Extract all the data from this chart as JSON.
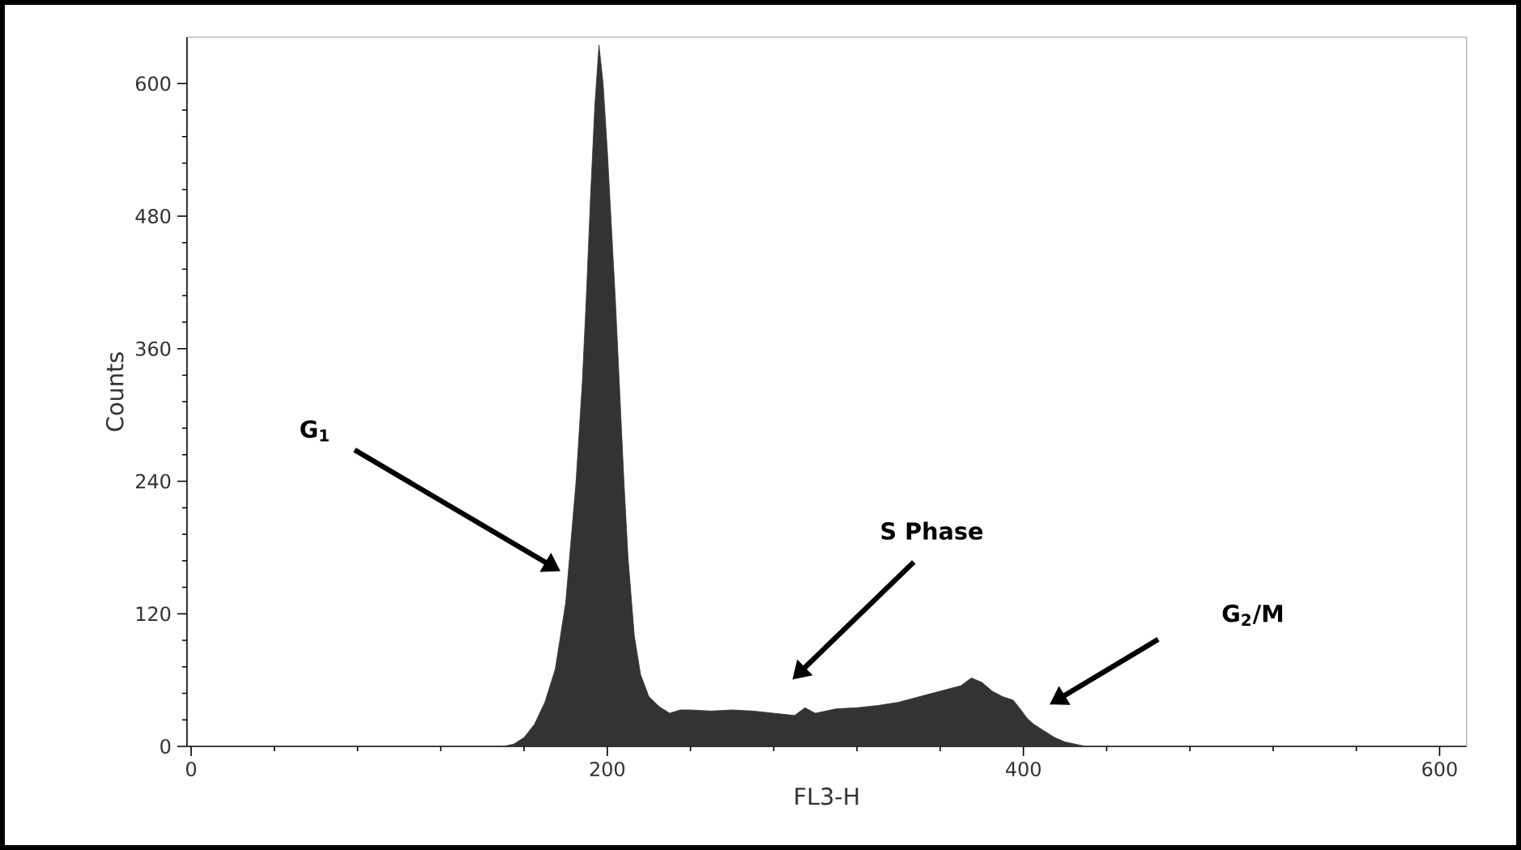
{
  "chart_data": {
    "type": "area",
    "xlabel": "FL3-H",
    "ylabel": "Counts",
    "color": "#333333",
    "x": [
      150,
      155,
      160,
      165,
      170,
      175,
      180,
      185,
      188,
      190,
      192,
      194,
      196,
      198,
      200,
      202,
      204,
      206,
      208,
      210,
      213,
      216,
      220,
      225,
      230,
      235,
      240,
      250,
      260,
      270,
      280,
      290,
      295,
      300,
      310,
      320,
      330,
      340,
      350,
      360,
      370,
      375,
      380,
      385,
      390,
      395,
      398,
      402,
      405,
      410,
      415,
      420,
      425,
      430
    ],
    "values": [
      0,
      2,
      8,
      20,
      40,
      70,
      130,
      240,
      330,
      410,
      500,
      580,
      635,
      600,
      540,
      470,
      400,
      320,
      240,
      170,
      100,
      65,
      45,
      36,
      30,
      33,
      33,
      32,
      33,
      32,
      30,
      28,
      35,
      30,
      34,
      35,
      37,
      40,
      45,
      50,
      55,
      62,
      58,
      50,
      45,
      42,
      35,
      25,
      20,
      14,
      8,
      4,
      2,
      0
    ],
    "xlim": [
      -2,
      613
    ],
    "ylim": [
      0,
      642
    ],
    "xticks": [
      0,
      200,
      400,
      600
    ],
    "yticks": [
      0,
      120,
      240,
      360,
      480,
      600
    ],
    "annotations": [
      "G$_{1}$",
      "S Phase",
      "G$_{2}$/M"
    ]
  }
}
